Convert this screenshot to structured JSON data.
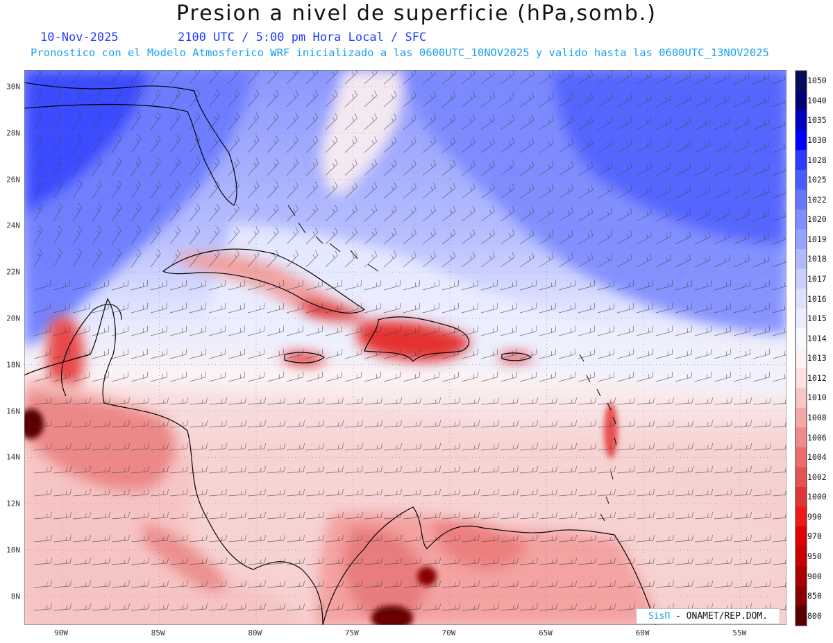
{
  "header": {
    "title": "Presion a nivel de superficie (hPa,somb.)",
    "date": "10-Nov-2025",
    "valid_time": "2100 UTC / 5:00 pm Hora Local / SFC",
    "model_info": "Pronostico con el Modelo Atmosferico WRF inicializado a las 0600UTC_10NOV2025 y valido hasta las  0600UTC_13NOV2025"
  },
  "axes": {
    "lat_labels": [
      "30N",
      "28N",
      "26N",
      "24N",
      "22N",
      "20N",
      "18N",
      "16N",
      "14N",
      "12N",
      "10N",
      "8N"
    ],
    "lon_labels": [
      "90W",
      "85W",
      "80W",
      "75W",
      "70W",
      "65W",
      "60W",
      "55W"
    ]
  },
  "colorbar": {
    "levels": [
      "1050",
      "1040",
      "1035",
      "1030",
      "1028",
      "1025",
      "1022",
      "1020",
      "1019",
      "1018",
      "1017",
      "1016",
      "1015",
      "1014",
      "1013",
      "1012",
      "1010",
      "1008",
      "1006",
      "1004",
      "1002",
      "1000",
      "990",
      "970",
      "950",
      "900",
      "850",
      "800"
    ],
    "colors": [
      "#0a0a5a",
      "#00007a",
      "#0000c0",
      "#0000ff",
      "#2a3cff",
      "#4a5cff",
      "#6676ff",
      "#7f8dff",
      "#98a3ff",
      "#b2baff",
      "#c9cfff",
      "#dde1ff",
      "#eceeff",
      "#f8f9ff",
      "#fff2f2",
      "#fde0e0",
      "#f9c6c6",
      "#f4a9a9",
      "#ef8b8b",
      "#ea6d6d",
      "#e45252",
      "#de3636",
      "#f01818",
      "#e00000",
      "#c80000",
      "#a80000",
      "#880000",
      "#5a0000"
    ]
  },
  "colors": {
    "title_blue": "#1e3cff",
    "info_cyan": "#1aa0f0",
    "high_pressure": "#5a6cff",
    "low_pressure": "#e02020"
  },
  "credit": {
    "brand": "SisΠ",
    "text": " - ONAMET/REP.DOM."
  }
}
